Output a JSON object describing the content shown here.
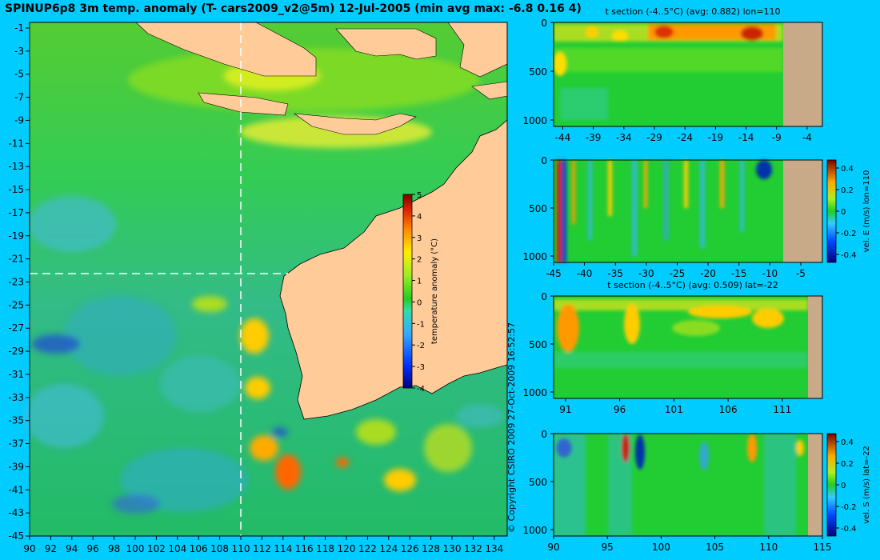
{
  "map": {
    "title": "SPINUP6p8 3m temp. anomaly (T- cars2009_v2@5m) 12-Jul-2005 (min avg max: -6.8 0.16 4)",
    "x_ticks": [
      "90",
      "92",
      "94",
      "96",
      "98",
      "100",
      "102",
      "104",
      "106",
      "108",
      "110",
      "112",
      "114",
      "116",
      "118",
      "120",
      "122",
      "124",
      "126",
      "128",
      "130",
      "132",
      "134"
    ],
    "y_ticks": [
      "-1",
      "-3",
      "-5",
      "-7",
      "-9",
      "-11",
      "-13",
      "-15",
      "-17",
      "-19",
      "-21",
      "-23",
      "-25",
      "-27",
      "-29",
      "-31",
      "-33",
      "-35",
      "-37",
      "-39",
      "-41",
      "-43",
      "-45"
    ],
    "colorbar": {
      "label": "temperature anomaly (°C)",
      "ticks": [
        "5",
        "4",
        "3",
        "2",
        "1",
        "0",
        "-1",
        "-2",
        "-3",
        "-4"
      ]
    },
    "copyright": "© Copyright CSIRO 2009   27-Oct-2009 16:52:57"
  },
  "panels": [
    {
      "title": "t section (-4..5°C) (avg: 0.882) lon=110",
      "x_ticks": [
        "-44",
        "-39",
        "-34",
        "-29",
        "-24",
        "-19",
        "-14",
        "-9",
        "-4"
      ],
      "y_ticks": [
        "0",
        "500",
        "1000"
      ]
    },
    {
      "title": "",
      "x_ticks": [
        "-45",
        "-40",
        "-35",
        "-30",
        "-25",
        "-20",
        "-15",
        "-10",
        "-5"
      ],
      "y_ticks": [
        "0",
        "500",
        "1000"
      ],
      "colorbar": {
        "label": "vel. E (m/s) lon=110",
        "ticks": [
          "0.4",
          "0.2",
          "0",
          "-0.2",
          "-0.4"
        ]
      }
    },
    {
      "title": "t section (-4..5°C) (avg: 0.509) lat=-22",
      "x_ticks": [
        "91",
        "96",
        "101",
        "106",
        "111"
      ],
      "y_ticks": [
        "0",
        "500",
        "1000"
      ]
    },
    {
      "title": "",
      "x_ticks": [
        "90",
        "95",
        "100",
        "105",
        "110",
        "115"
      ],
      "y_ticks": [
        "0",
        "500",
        "1000"
      ],
      "colorbar": {
        "label": "vel. S (m/s) lat=-22",
        "ticks": [
          "0.4",
          "0.2",
          "0",
          "-0.2",
          "-0.4"
        ]
      }
    }
  ],
  "chart_data": [
    {
      "type": "heatmap",
      "title": "SPINUP6p8 3m temp. anomaly (T- cars2009_v2@5m) 12-Jul-2005 (min avg max: -6.8 0.16 4)",
      "x_range": [
        90,
        135
      ],
      "y_range": [
        -45,
        1
      ],
      "colorbar_range": [
        -4,
        5
      ],
      "colorbar_label": "temperature anomaly (°C)",
      "stats": {
        "min": -6.8,
        "avg": 0.16,
        "max": 4
      },
      "section_lines": {
        "lon": 110,
        "lat": -22
      }
    },
    {
      "type": "heatmap",
      "title": "t section (-4..5°C) (avg: 0.882) lon=110",
      "x_range": [
        -45,
        -2
      ],
      "y_range": [
        0,
        1000
      ],
      "value_range": [
        -4,
        5
      ],
      "avg": 0.882
    },
    {
      "type": "heatmap",
      "title": "",
      "x_range": [
        -45,
        -2
      ],
      "y_range": [
        0,
        1000
      ],
      "colorbar_range": [
        -0.4,
        0.4
      ],
      "colorbar_label": "vel. E (m/s) lon=110"
    },
    {
      "type": "heatmap",
      "title": "t section (-4..5°C) (avg: 0.509) lat=-22",
      "x_range": [
        90,
        115
      ],
      "y_range": [
        0,
        1000
      ],
      "value_range": [
        -4,
        5
      ],
      "avg": 0.509
    },
    {
      "type": "heatmap",
      "title": "",
      "x_range": [
        90,
        115
      ],
      "y_range": [
        0,
        1000
      ],
      "colorbar_range": [
        -0.4,
        0.4
      ],
      "colorbar_label": "vel. S (m/s) lat=-22"
    }
  ]
}
